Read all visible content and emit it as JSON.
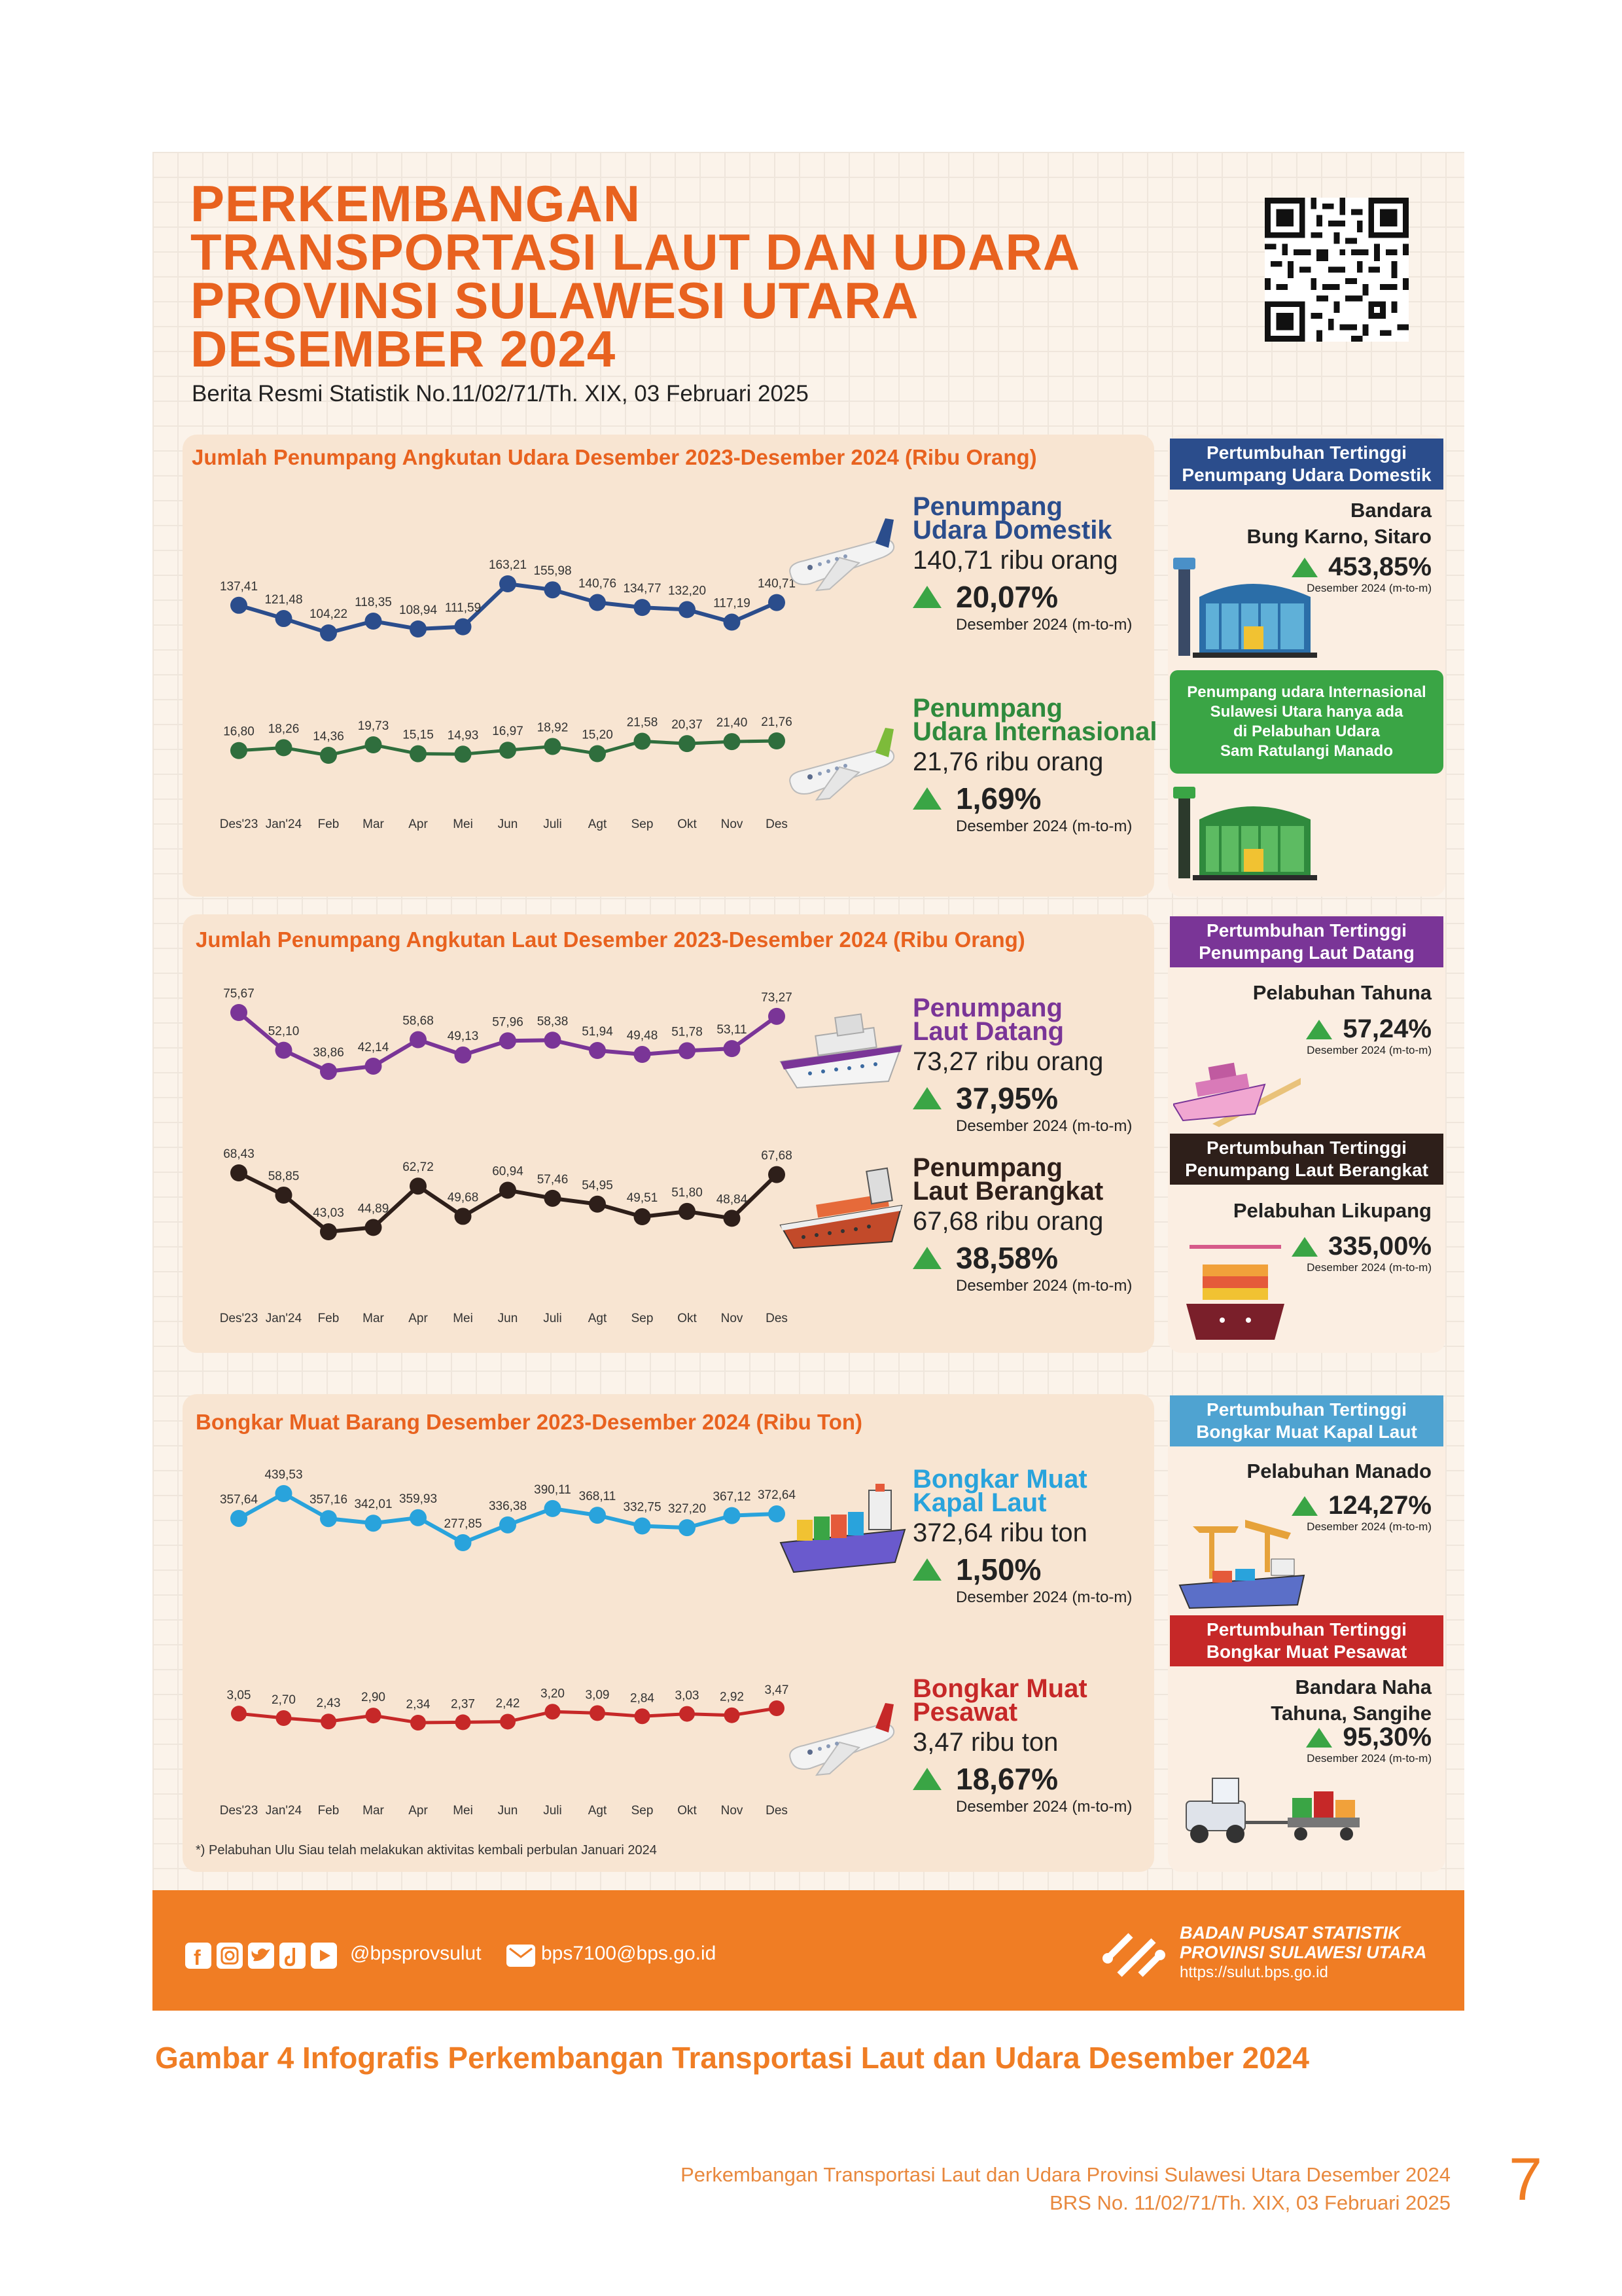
{
  "header": {
    "title_lines": [
      "PERKEMBANGAN",
      "TRANSPORTASI LAUT DAN UDARA",
      "PROVINSI SULAWESI UTARA",
      "DESEMBER 2024"
    ],
    "brs": "Berita Resmi Statistik No.11/02/71/Th. XIX, 03 Februari 2025"
  },
  "air_panel": {
    "title": "Jumlah Penumpang Angkutan Udara Desember 2023-Desember 2024 (Ribu Orang)",
    "domestic": {
      "name1": "Penumpang",
      "name2": "Udara Domestik",
      "value": "140,71 ribu orang",
      "pct": "20,07%",
      "sub": "Desember 2024 (m-to-m)"
    },
    "international": {
      "name1": "Penumpang",
      "name2": "Udara Internasional",
      "value": "21,76 ribu orang",
      "pct": "1,69%",
      "sub": "Desember 2024 (m-to-m)"
    }
  },
  "sea_panel": {
    "title": "Jumlah Penumpang Angkutan Laut Desember 2023-Desember 2024 (Ribu Orang)",
    "arrive": {
      "name1": "Penumpang",
      "name2": "Laut Datang",
      "value": "73,27 ribu orang",
      "pct": "37,95%",
      "sub": "Desember 2024 (m-to-m)"
    },
    "depart": {
      "name1": "Penumpang",
      "name2": "Laut Berangkat",
      "value": "67,68 ribu orang",
      "pct": "38,58%",
      "sub": "Desember 2024 (m-to-m)"
    }
  },
  "cargo_panel": {
    "title": "Bongkar Muat Barang Desember 2023-Desember 2024 (Ribu Ton)",
    "sea": {
      "name1": "Bongkar Muat",
      "name2": "Kapal Laut",
      "value": "372,64 ribu ton",
      "pct": "1,50%",
      "sub": "Desember 2024 (m-to-m)"
    },
    "air": {
      "name1": "Bongkar Muat",
      "name2": "Pesawat",
      "value": "3,47 ribu ton",
      "pct": "18,67%",
      "sub": "Desember 2024 (m-to-m)"
    },
    "footnote": "*) Pelabuhan Ulu Siau telah melakukan aktivitas kembali perbulan Januari 2024"
  },
  "side": {
    "b1": {
      "label1": "Pertumbuhan Tertinggi",
      "label2": "Penumpang Udara Domestik",
      "loc1": "Bandara",
      "loc2": "Bung Karno, Sitaro",
      "pct": "453,85%",
      "sub": "Desember 2024 (m-to-m)"
    },
    "b2": {
      "line1": "Penumpang udara Internasional",
      "line2": "Sulawesi Utara hanya ada",
      "line3": "di Pelabuhan Udara",
      "line4": "Sam Ratulangi Manado"
    },
    "b3": {
      "label1": "Pertumbuhan Tertinggi",
      "label2": "Penumpang Laut Datang",
      "loc1": "Pelabuhan Tahuna",
      "pct": "57,24%",
      "sub": "Desember 2024 (m-to-m)"
    },
    "b4": {
      "label1": "Pertumbuhan Tertinggi",
      "label2": "Penumpang Laut Berangkat",
      "loc1": "Pelabuhan Likupang",
      "pct": "335,00%",
      "sub": "Desember 2024 (m-to-m)"
    },
    "b5": {
      "label1": "Pertumbuhan Tertinggi",
      "label2": "Bongkar Muat Kapal Laut",
      "loc1": "Pelabuhan Manado",
      "pct": "124,27%",
      "sub": "Desember 2024 (m-to-m)"
    },
    "b6": {
      "label1": "Pertumbuhan Tertinggi",
      "label2": "Bongkar Muat Pesawat",
      "loc1": "Bandara Naha",
      "loc2": "Tahuna, Sangihe",
      "pct": "95,30%",
      "sub": "Desember 2024 (m-to-m)"
    }
  },
  "footer": {
    "social": "@bpsprovsulut",
    "email": "bps7100@bps.go.id",
    "org1": "BADAN PUSAT STATISTIK",
    "org2": "PROVINSI SULAWESI UTARA",
    "url": "https://sulut.bps.go.id"
  },
  "caption": "Gambar 4    Infografis Perkembangan Transportasi Laut dan Udara Desember 2024",
  "page_footer": {
    "line1": "Perkembangan Transportasi Laut dan Udara Provinsi Sulawesi Utara Desember 2024",
    "line2": "BRS No. 11/02/71/Th. XIX, 03 Februari 2025",
    "page": "7"
  },
  "colors": {
    "orange": "#e8621f",
    "air_domestic": "#2b4d8c",
    "air_international": "#2f6e3d",
    "sea_arrive": "#7a3597",
    "sea_depart": "#2e1f1a",
    "cargo_sea": "#29a3dc",
    "cargo_air": "#c62828",
    "up_arrow": "#3aa545"
  },
  "chart_data": [
    {
      "type": "line",
      "name": "Penumpang Udara Domestik",
      "categories": [
        "Des'23",
        "Jan'24",
        "Feb",
        "Mar",
        "Apr",
        "Mei",
        "Jun",
        "Juli",
        "Agt",
        "Sep",
        "Okt",
        "Nov",
        "Des"
      ],
      "values": [
        137.41,
        121.48,
        104.22,
        118.35,
        108.94,
        111.59,
        163.21,
        155.98,
        140.76,
        134.77,
        132.2,
        117.19,
        140.71
      ],
      "labels": [
        "137,41",
        "121,48",
        "104,22",
        "118,35",
        "108,94",
        "111,59",
        "163,21",
        "155,98",
        "140,76",
        "134,77",
        "132,20",
        "117,19",
        "140,71"
      ],
      "color": "#2b4d8c"
    },
    {
      "type": "line",
      "name": "Penumpang Udara Internasional",
      "categories": [
        "Des'23",
        "Jan'24",
        "Feb",
        "Mar",
        "Apr",
        "Mei",
        "Jun",
        "Juli",
        "Agt",
        "Sep",
        "Okt",
        "Nov",
        "Des"
      ],
      "values": [
        16.8,
        18.26,
        14.36,
        19.73,
        15.15,
        14.93,
        16.97,
        18.92,
        15.2,
        21.58,
        20.37,
        21.4,
        21.76
      ],
      "labels": [
        "16,80",
        "18,26",
        "14,36",
        "19,73",
        "15,15",
        "14,93",
        "16,97",
        "18,92",
        "15,20",
        "21,58",
        "20,37",
        "21,40",
        "21,76"
      ],
      "color": "#2f6e3d"
    },
    {
      "type": "line",
      "name": "Penumpang Laut Datang",
      "categories": [
        "Des'23",
        "Jan'24",
        "Feb",
        "Mar",
        "Apr",
        "Mei",
        "Jun",
        "Juli",
        "Agt",
        "Sep",
        "Okt",
        "Nov",
        "Des"
      ],
      "values": [
        75.67,
        52.1,
        38.86,
        42.14,
        58.68,
        49.13,
        57.96,
        58.38,
        51.94,
        49.48,
        51.78,
        53.11,
        73.27
      ],
      "labels": [
        "75,67",
        "52,10",
        "38,86",
        "42,14",
        "58,68",
        "49,13",
        "57,96",
        "58,38",
        "51,94",
        "49,48",
        "51,78",
        "53,11",
        "73,27"
      ],
      "color": "#7a3597"
    },
    {
      "type": "line",
      "name": "Penumpang Laut Berangkat",
      "categories": [
        "Des'23",
        "Jan'24",
        "Feb",
        "Mar",
        "Apr",
        "Mei",
        "Jun",
        "Juli",
        "Agt",
        "Sep",
        "Okt",
        "Nov",
        "Des"
      ],
      "values": [
        68.43,
        58.85,
        43.03,
        44.89,
        62.72,
        49.68,
        60.94,
        57.46,
        54.95,
        49.51,
        51.8,
        48.84,
        67.68
      ],
      "labels": [
        "68,43",
        "58,85",
        "43,03",
        "44,89",
        "62,72",
        "49,68",
        "60,94",
        "57,46",
        "54,95",
        "49,51",
        "51,80",
        "48,84",
        "67,68"
      ],
      "color": "#2e1f1a"
    },
    {
      "type": "line",
      "name": "Bongkar Muat Kapal Laut",
      "categories": [
        "Des'23",
        "Jan'24",
        "Feb",
        "Mar",
        "Apr",
        "Mei",
        "Jun",
        "Juli",
        "Agt",
        "Sep",
        "Okt",
        "Nov",
        "Des"
      ],
      "values": [
        357.64,
        439.53,
        357.16,
        342.01,
        359.93,
        277.85,
        336.38,
        390.11,
        368.11,
        332.75,
        327.2,
        367.12,
        372.64
      ],
      "labels": [
        "357,64",
        "439,53",
        "357,16",
        "342,01",
        "359,93",
        "277,85",
        "336,38",
        "390,11",
        "368,11",
        "332,75",
        "327,20",
        "367,12",
        "372,64"
      ],
      "color": "#29a3dc"
    },
    {
      "type": "line",
      "name": "Bongkar Muat Pesawat",
      "categories": [
        "Des'23",
        "Jan'24",
        "Feb",
        "Mar",
        "Apr",
        "Mei",
        "Jun",
        "Juli",
        "Agt",
        "Sep",
        "Okt",
        "Nov",
        "Des"
      ],
      "values": [
        3.05,
        2.7,
        2.43,
        2.9,
        2.34,
        2.37,
        2.42,
        3.2,
        3.09,
        2.84,
        3.03,
        2.92,
        3.47
      ],
      "labels": [
        "3,05",
        "2,70",
        "2,43",
        "2,90",
        "2,34",
        "2,37",
        "2,42",
        "3,20",
        "3,09",
        "2,84",
        "3,03",
        "2,92",
        "3,47"
      ],
      "color": "#c62828"
    }
  ]
}
